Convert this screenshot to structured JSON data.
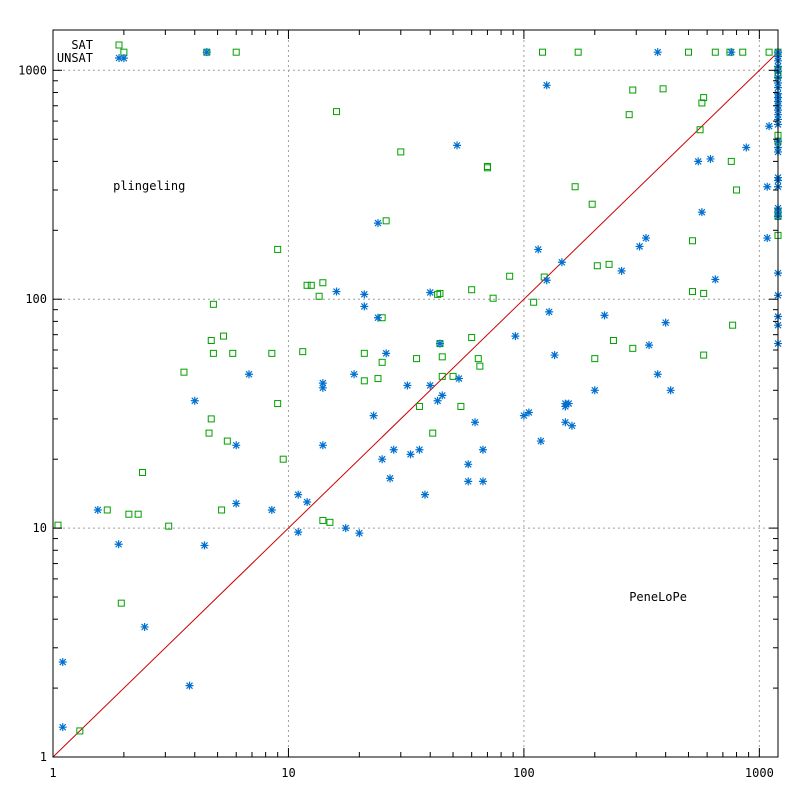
{
  "chart_data": {
    "type": "scatter",
    "title": "",
    "xlabel": "",
    "ylabel": "",
    "xscale": "log",
    "yscale": "log",
    "xlim": [
      1,
      1200
    ],
    "ylim": [
      1,
      1500
    ],
    "grid": true,
    "legend_position": "top-left",
    "major_ticks": [
      {
        "value": 1,
        "label": "1"
      },
      {
        "value": 10,
        "label": "10"
      },
      {
        "value": 100,
        "label": "100"
      },
      {
        "value": 1000,
        "label": "1000"
      }
    ],
    "diagonal": {
      "from": 1,
      "to": 1200,
      "color": "#cc0000"
    },
    "annotations": [
      {
        "text": "plingeling",
        "x": 1.8,
        "y": 300
      },
      {
        "text": "PeneLoPe",
        "x": 280,
        "y": 4.8
      }
    ],
    "series": [
      {
        "name": "SAT",
        "marker": "square",
        "color": "#00a000",
        "points": [
          [
            2,
            1200
          ],
          [
            4.5,
            1200
          ],
          [
            6,
            1200
          ],
          [
            120,
            1200
          ],
          [
            170,
            1200
          ],
          [
            500,
            1200
          ],
          [
            650,
            1200
          ],
          [
            750,
            1200
          ],
          [
            850,
            1200
          ],
          [
            1100,
            1200
          ],
          [
            1200,
            1200
          ],
          [
            1200,
            1000
          ],
          [
            1200,
            950
          ],
          [
            290,
            820
          ],
          [
            390,
            830
          ],
          [
            580,
            760
          ],
          [
            570,
            720
          ],
          [
            16,
            660
          ],
          [
            280,
            640
          ],
          [
            1200,
            520
          ],
          [
            1200,
            490
          ],
          [
            560,
            550
          ],
          [
            30,
            440
          ],
          [
            70,
            380
          ],
          [
            70,
            375
          ],
          [
            760,
            400
          ],
          [
            165,
            310
          ],
          [
            800,
            300
          ],
          [
            26,
            220
          ],
          [
            195,
            260
          ],
          [
            1200,
            240
          ],
          [
            1200,
            230
          ],
          [
            1200,
            190
          ],
          [
            9,
            165
          ],
          [
            520,
            180
          ],
          [
            230,
            142
          ],
          [
            205,
            140
          ],
          [
            87,
            126
          ],
          [
            122,
            125
          ],
          [
            12,
            115
          ],
          [
            12.5,
            115
          ],
          [
            14,
            118
          ],
          [
            60,
            110
          ],
          [
            520,
            108
          ],
          [
            580,
            106
          ],
          [
            43,
            105
          ],
          [
            44,
            106
          ],
          [
            74,
            101
          ],
          [
            110,
            97
          ],
          [
            13.5,
            103
          ],
          [
            4.8,
            95
          ],
          [
            25,
            83
          ],
          [
            770,
            77
          ],
          [
            5.3,
            69
          ],
          [
            4.7,
            66
          ],
          [
            60,
            68
          ],
          [
            44,
            64
          ],
          [
            240,
            66
          ],
          [
            290,
            61
          ],
          [
            8.5,
            58
          ],
          [
            11.5,
            59
          ],
          [
            4.8,
            58
          ],
          [
            5.8,
            58
          ],
          [
            21,
            58
          ],
          [
            35,
            55
          ],
          [
            45,
            56
          ],
          [
            64,
            55
          ],
          [
            200,
            55
          ],
          [
            580,
            57
          ],
          [
            25,
            53
          ],
          [
            65,
            51
          ],
          [
            3.6,
            48
          ],
          [
            24,
            45
          ],
          [
            21,
            44
          ],
          [
            45,
            46
          ],
          [
            50,
            46
          ],
          [
            9,
            35
          ],
          [
            36,
            34
          ],
          [
            54,
            34
          ],
          [
            4.7,
            30
          ],
          [
            4.6,
            26
          ],
          [
            41,
            26
          ],
          [
            5.5,
            24
          ],
          [
            9.5,
            20
          ],
          [
            2.4,
            17.5
          ],
          [
            1.7,
            12
          ],
          [
            2.1,
            11.5
          ],
          [
            2.3,
            11.5
          ],
          [
            5.2,
            12
          ],
          [
            14,
            10.8
          ],
          [
            15,
            10.6
          ],
          [
            3.1,
            10.2
          ],
          [
            1.05,
            10.3
          ],
          [
            1.95,
            4.7
          ],
          [
            1.3,
            1.3
          ]
        ]
      },
      {
        "name": "UNSAT",
        "marker": "asterisk",
        "color": "#0070d0",
        "points": [
          [
            2,
            1130
          ],
          [
            4.5,
            1200
          ],
          [
            370,
            1200
          ],
          [
            760,
            1200
          ],
          [
            1200,
            1200
          ],
          [
            1200,
            1150
          ],
          [
            1200,
            1100
          ],
          [
            1200,
            1040
          ],
          [
            1200,
            990
          ],
          [
            1200,
            930
          ],
          [
            1200,
            880
          ],
          [
            1200,
            840
          ],
          [
            1200,
            790
          ],
          [
            1200,
            760
          ],
          [
            1200,
            730
          ],
          [
            1200,
            700
          ],
          [
            1200,
            670
          ],
          [
            1200,
            640
          ],
          [
            1200,
            610
          ],
          [
            1200,
            580
          ],
          [
            125,
            860
          ],
          [
            1100,
            570
          ],
          [
            1200,
            490
          ],
          [
            1200,
            460
          ],
          [
            1200,
            440
          ],
          [
            52,
            470
          ],
          [
            880,
            460
          ],
          [
            550,
            400
          ],
          [
            620,
            410
          ],
          [
            1200,
            340
          ],
          [
            1200,
            330
          ],
          [
            1200,
            310
          ],
          [
            1080,
            310
          ],
          [
            1200,
            250
          ],
          [
            1200,
            240
          ],
          [
            1200,
            230
          ],
          [
            570,
            240
          ],
          [
            24,
            215
          ],
          [
            1080,
            185
          ],
          [
            330,
            185
          ],
          [
            310,
            170
          ],
          [
            115,
            165
          ],
          [
            145,
            145
          ],
          [
            260,
            133
          ],
          [
            125,
            121
          ],
          [
            650,
            122
          ],
          [
            1200,
            130
          ],
          [
            16,
            108
          ],
          [
            21,
            105
          ],
          [
            40,
            107
          ],
          [
            1200,
            104
          ],
          [
            21,
            93
          ],
          [
            128,
            88
          ],
          [
            220,
            85
          ],
          [
            24,
            83
          ],
          [
            1200,
            84
          ],
          [
            1200,
            77
          ],
          [
            400,
            79
          ],
          [
            92,
            69
          ],
          [
            44,
            64
          ],
          [
            1200,
            64
          ],
          [
            340,
            63
          ],
          [
            26,
            58
          ],
          [
            135,
            57
          ],
          [
            6.8,
            47
          ],
          [
            19,
            47
          ],
          [
            370,
            47
          ],
          [
            14,
            43
          ],
          [
            14,
            41
          ],
          [
            32,
            42
          ],
          [
            40,
            42
          ],
          [
            53,
            45
          ],
          [
            200,
            40
          ],
          [
            420,
            40
          ],
          [
            4,
            36
          ],
          [
            43,
            36
          ],
          [
            45,
            38
          ],
          [
            150,
            35
          ],
          [
            150,
            34
          ],
          [
            155,
            35
          ],
          [
            100,
            31
          ],
          [
            105,
            32
          ],
          [
            23,
            31
          ],
          [
            62,
            29
          ],
          [
            150,
            29
          ],
          [
            160,
            28
          ],
          [
            118,
            24
          ],
          [
            6,
            23
          ],
          [
            14,
            23
          ],
          [
            28,
            22
          ],
          [
            36,
            22
          ],
          [
            67,
            22
          ],
          [
            33,
            21
          ],
          [
            25,
            20
          ],
          [
            58,
            19
          ],
          [
            27,
            16.5
          ],
          [
            58,
            16
          ],
          [
            67,
            16
          ],
          [
            38,
            14
          ],
          [
            11,
            14
          ],
          [
            12,
            13
          ],
          [
            6,
            12.8
          ],
          [
            8.5,
            12
          ],
          [
            1.55,
            12
          ],
          [
            11,
            9.6
          ],
          [
            17.5,
            10
          ],
          [
            20,
            9.5
          ],
          [
            1.9,
            8.5
          ],
          [
            4.4,
            8.4
          ],
          [
            2.45,
            3.7
          ],
          [
            1.1,
            2.6
          ],
          [
            3.8,
            2.05
          ],
          [
            1.1,
            1.35
          ]
        ]
      }
    ]
  }
}
